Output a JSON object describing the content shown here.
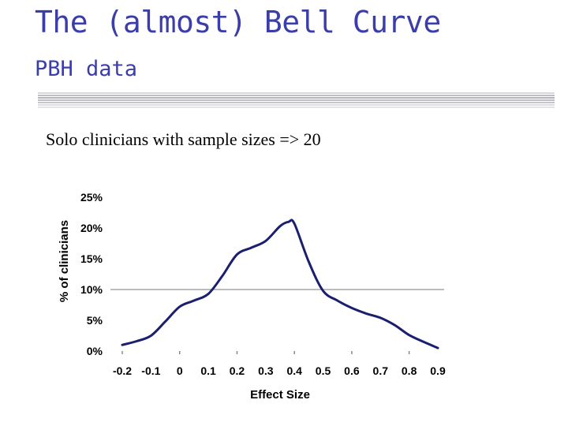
{
  "slide": {
    "title": "The (almost) Bell Curve",
    "subtitle": "PBH data",
    "caption": "Solo clinicians with sample sizes => 20"
  },
  "colors": {
    "heading": "#3b3ea8",
    "line": "#1a1f6e",
    "rules": "#a0a0a8"
  },
  "chart_data": {
    "type": "line",
    "title": "",
    "xlabel": "Effect Size",
    "ylabel": "% of clinicians",
    "x_tick_labels": [
      "-0.2",
      "-0.1",
      "0",
      "0.1",
      "0.2",
      "0.3",
      "0.4",
      "0.5",
      "0.6",
      "0.7",
      "0.8",
      "0.9"
    ],
    "y_tick_labels": [
      "0%",
      "5%",
      "10%",
      "15%",
      "20%",
      "25%"
    ],
    "xlim": [
      -0.2,
      0.9
    ],
    "ylim": [
      0,
      25
    ],
    "gridlines": [
      10
    ],
    "series": [
      {
        "x": [
          -0.2,
          -0.15,
          -0.1,
          -0.05,
          0,
          0.05,
          0.1,
          0.15,
          0.2,
          0.25,
          0.3,
          0.35,
          0.38,
          0.4,
          0.45,
          0.5,
          0.55,
          0.6,
          0.65,
          0.7,
          0.75,
          0.8,
          0.85,
          0.9
        ],
        "y": [
          1.0,
          1.6,
          2.5,
          4.8,
          7.2,
          8.2,
          9.3,
          12.3,
          15.7,
          16.8,
          17.9,
          20.3,
          21.0,
          20.7,
          14.5,
          9.8,
          8.2,
          7.0,
          6.1,
          5.4,
          4.2,
          2.6,
          1.5,
          0.5
        ]
      }
    ]
  }
}
